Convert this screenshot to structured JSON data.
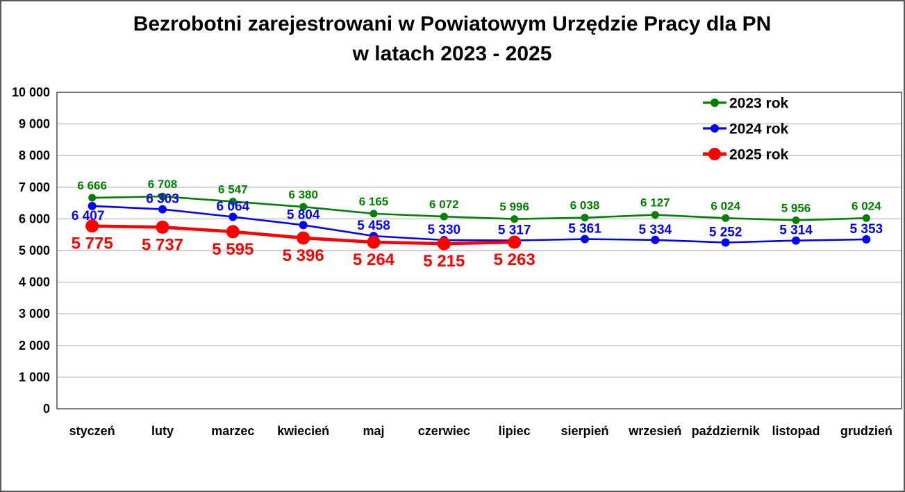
{
  "title": {
    "line1": "Bezrobotni zarejestrowani w Powiatowym Urzędzie Pracy dla PN",
    "line2": "w latach 2023 - 2025"
  },
  "chart_data": {
    "type": "line",
    "categories": [
      "styczeń",
      "luty",
      "marzec",
      "kwiecień",
      "maj",
      "czerwiec",
      "lipiec",
      "sierpień",
      "wrzesień",
      "październik",
      "listopad",
      "grudzień"
    ],
    "series": [
      {
        "name": "2023 rok",
        "color": "#008000",
        "values": [
          6666,
          6708,
          6547,
          6380,
          6165,
          6072,
          5996,
          6038,
          6127,
          6024,
          5956,
          6024
        ]
      },
      {
        "name": "2024 rok",
        "color": "#0000ff",
        "values": [
          6407,
          6303,
          6064,
          5804,
          5458,
          5330,
          5317,
          5361,
          5334,
          5252,
          5314,
          5353
        ]
      },
      {
        "name": "2025 rok",
        "color": "#ff0000",
        "values": [
          5775,
          5737,
          5595,
          5396,
          5264,
          5215,
          5263
        ]
      }
    ],
    "ylim": [
      0,
      10000
    ],
    "ytick_step": 1000,
    "ytick_labels": [
      "0",
      "1 000",
      "2 000",
      "3 000",
      "4 000",
      "5 000",
      "6 000",
      "7 000",
      "8 000",
      "9 000",
      "10 000"
    ],
    "grid": true,
    "data_labels": true,
    "legend_position": "top-right"
  },
  "colors": {
    "background": "#ffffff",
    "border": "#595959",
    "axis": "#595959",
    "gridline": "#bfbfbf",
    "text": "#000000"
  }
}
